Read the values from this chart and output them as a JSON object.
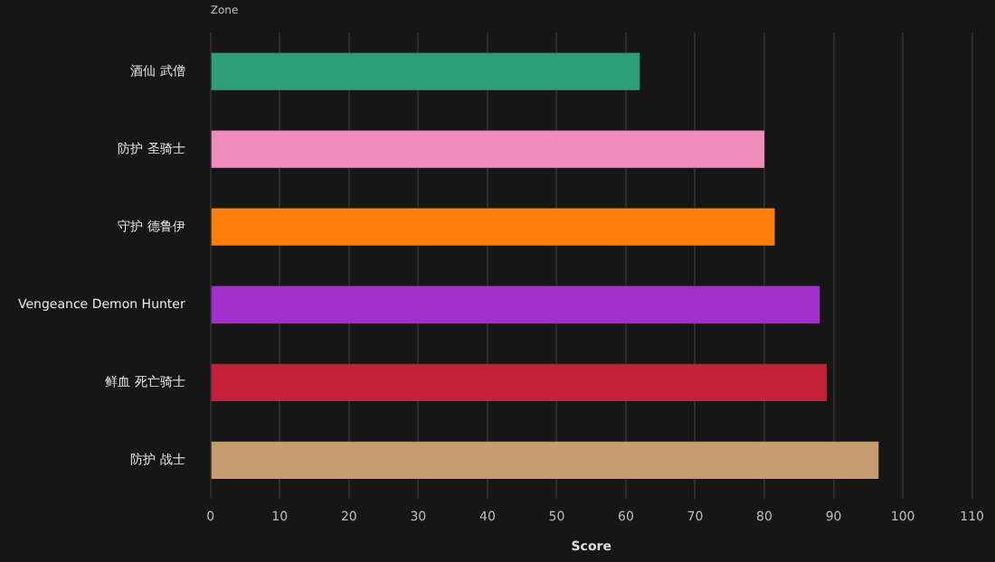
{
  "chart_data": {
    "type": "bar",
    "orientation": "horizontal",
    "ylabel": "Zone",
    "xlabel": "Score",
    "categories": [
      "酒仙 武僧",
      "防护 圣骑士",
      "守护 德鲁伊",
      "Vengeance Demon Hunter",
      "鲜血 死亡骑士",
      "防护 战士"
    ],
    "values": [
      62,
      80,
      81.5,
      88,
      89,
      96.5
    ],
    "colors": [
      "#2e9e78",
      "#f08cbc",
      "#ff7f0e",
      "#a030c8",
      "#c41f3b",
      "#c69b6d"
    ],
    "xlim": [
      0,
      110
    ],
    "xticks": [
      0,
      10,
      20,
      30,
      40,
      50,
      60,
      70,
      80,
      90,
      100,
      110
    ],
    "grid": "x",
    "legend": false
  }
}
